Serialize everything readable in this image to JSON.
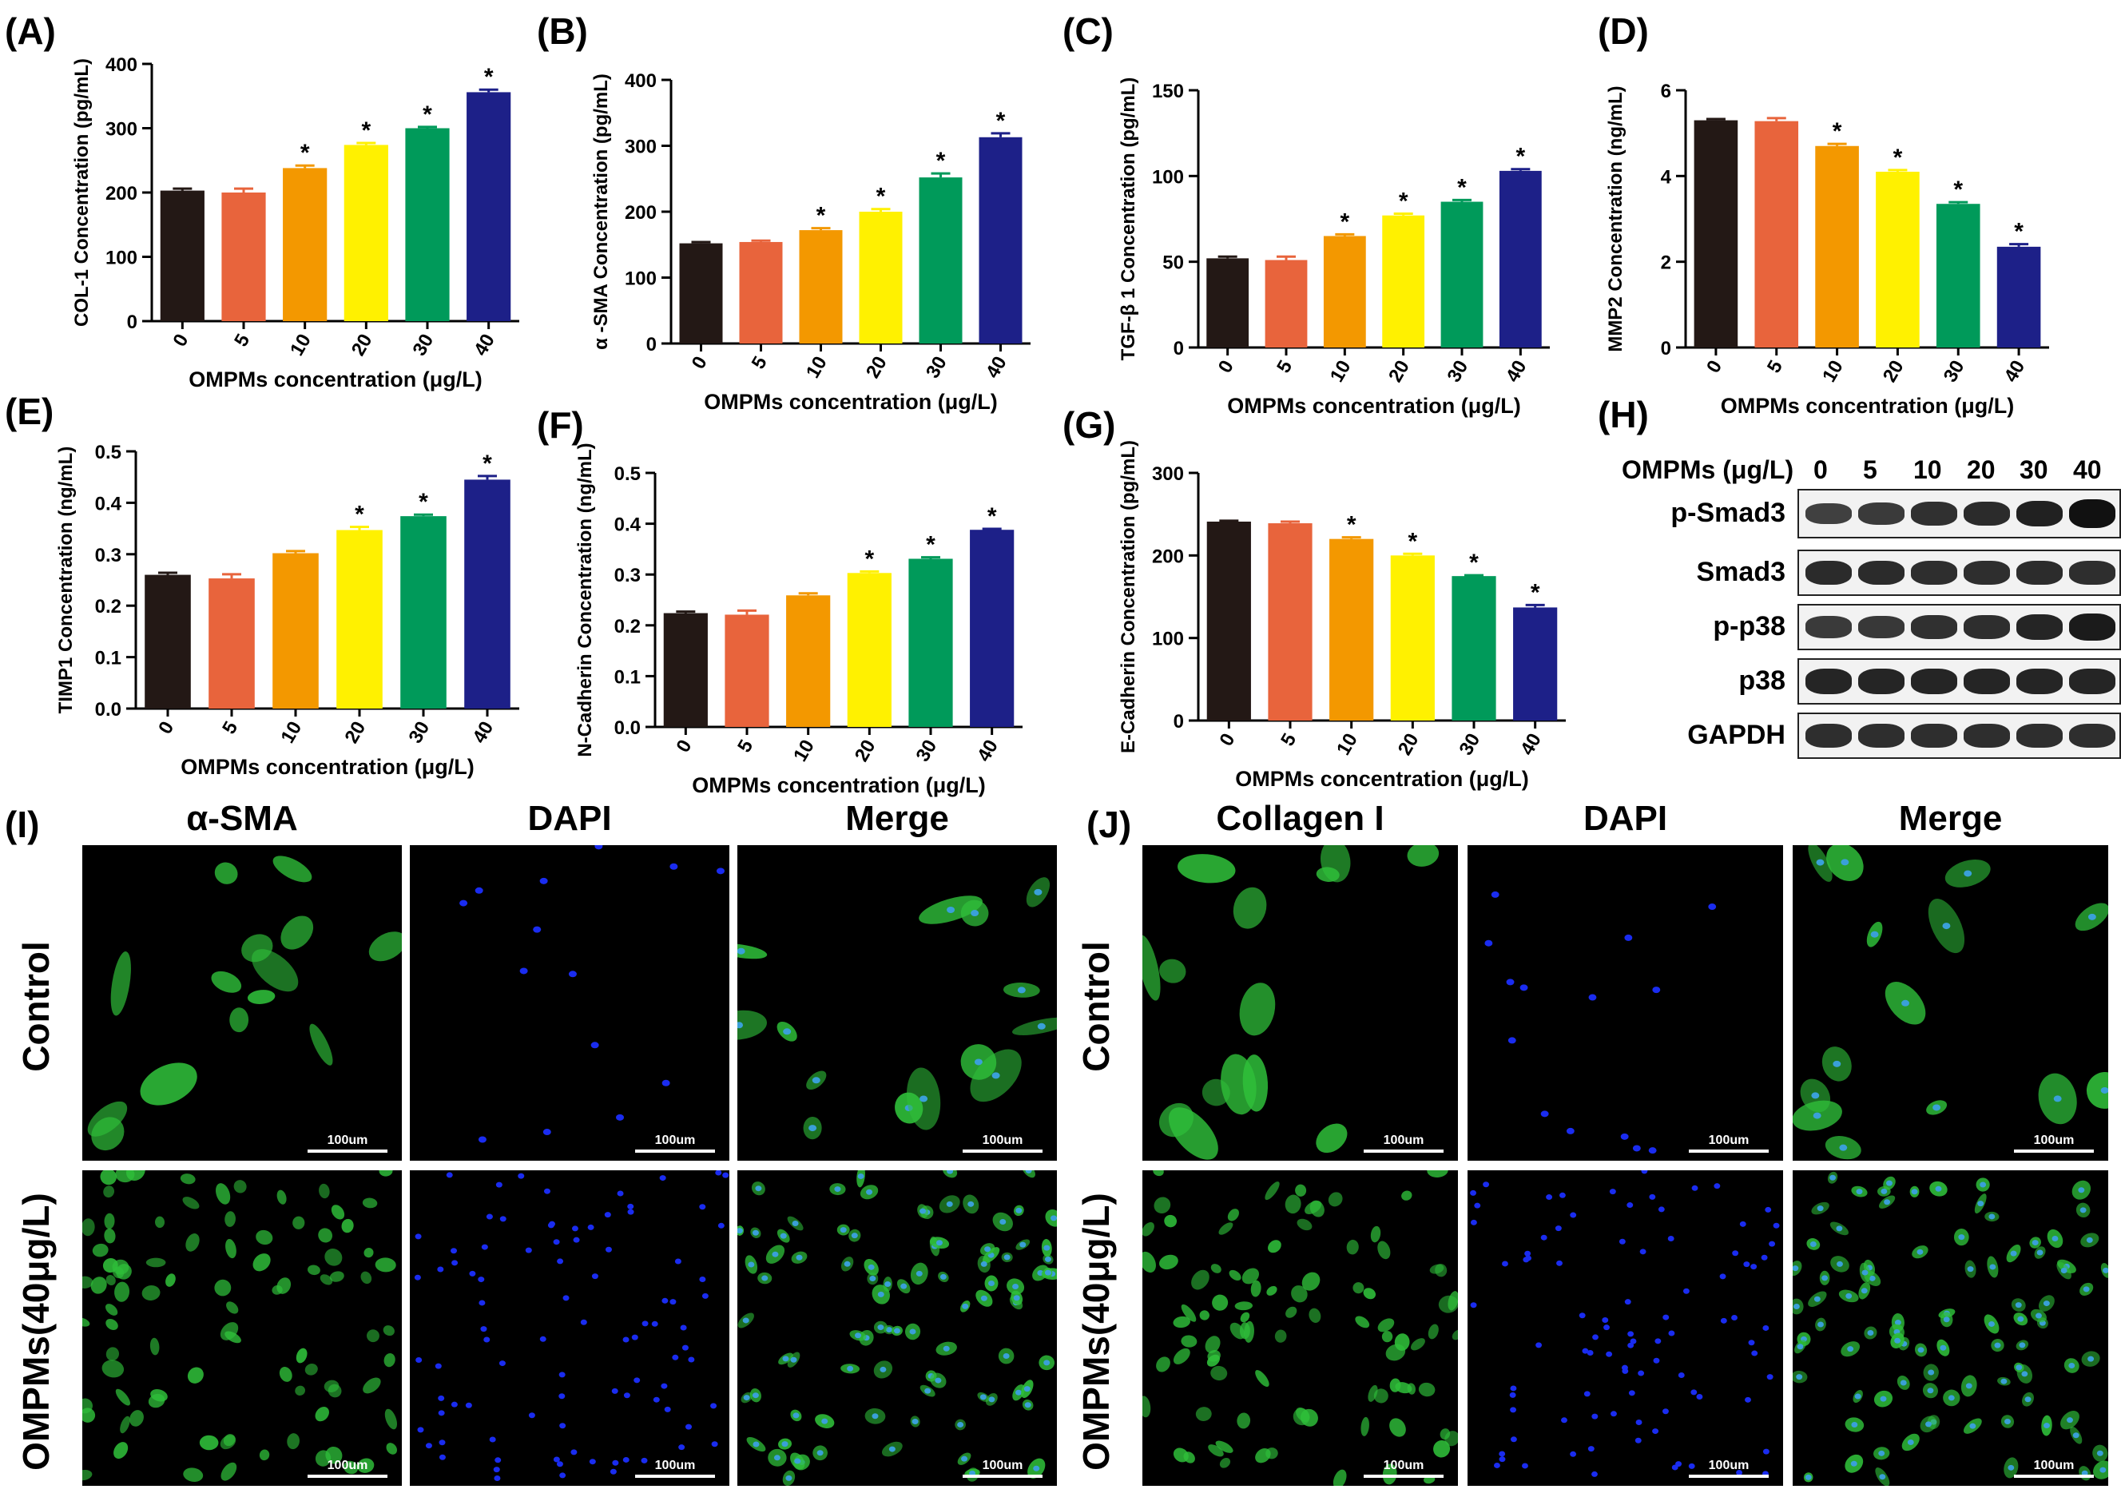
{
  "panel_letters": {
    "A": "(A)",
    "B": "(B)",
    "C": "(C)",
    "D": "(D)",
    "E": "(E)",
    "F": "(F)",
    "G": "(G)",
    "H": "(H)",
    "I": "(I)",
    "J": "(J)"
  },
  "colors": [
    "#231815",
    "#e8643c",
    "#f39800",
    "#fff100",
    "#009a5a",
    "#1d2088"
  ],
  "chart_data": [
    {
      "id": "A",
      "type": "bar",
      "categories": [
        "0",
        "5",
        "10",
        "20",
        "30",
        "40"
      ],
      "values": [
        203,
        200,
        238,
        274,
        300,
        356
      ],
      "errors": [
        3,
        6,
        4,
        3,
        2,
        4
      ],
      "significant": [
        false,
        false,
        true,
        true,
        true,
        true
      ],
      "ylabel": "COL-1 Concentration (pg/mL)",
      "xlabel": "OMPMs concentration (μg/L)",
      "ylim": [
        0,
        400
      ],
      "yticks": [
        0,
        100,
        200,
        300,
        400
      ]
    },
    {
      "id": "B",
      "type": "bar",
      "categories": [
        "0",
        "5",
        "10",
        "20",
        "30",
        "40"
      ],
      "values": [
        152,
        154,
        172,
        200,
        252,
        313
      ],
      "errors": [
        2,
        2,
        3,
        4,
        6,
        6
      ],
      "significant": [
        false,
        false,
        true,
        true,
        true,
        true
      ],
      "ylabel": "α -SMA Concentration (pg/mL)",
      "xlabel": "OMPMs concentration (μg/L)",
      "ylim": [
        0,
        400
      ],
      "yticks": [
        0,
        100,
        200,
        300,
        400
      ]
    },
    {
      "id": "C",
      "type": "bar",
      "categories": [
        "0",
        "5",
        "10",
        "20",
        "30",
        "40"
      ],
      "values": [
        52,
        51,
        65,
        77,
        85,
        103
      ],
      "errors": [
        1,
        2,
        1,
        1,
        1,
        1
      ],
      "significant": [
        false,
        false,
        true,
        true,
        true,
        true
      ],
      "ylabel": "TGF-β 1 Concentration (pg/mL)",
      "xlabel": "OMPMs concentration (μg/L)",
      "ylim": [
        0,
        150
      ],
      "yticks": [
        0,
        50,
        100,
        150
      ]
    },
    {
      "id": "D",
      "type": "bar",
      "categories": [
        "0",
        "5",
        "10",
        "20",
        "30",
        "40"
      ],
      "values": [
        5.3,
        5.28,
        4.7,
        4.1,
        3.35,
        2.35
      ],
      "errors": [
        0.03,
        0.07,
        0.05,
        0.04,
        0.04,
        0.06
      ],
      "significant": [
        false,
        false,
        true,
        true,
        true,
        true
      ],
      "ylabel": "MMP2 Concentration (ng/mL)",
      "xlabel": "OMPMs concentration (μg/L)",
      "ylim": [
        0,
        6
      ],
      "yticks": [
        0,
        2,
        4,
        6
      ]
    },
    {
      "id": "E",
      "type": "bar",
      "categories": [
        "0",
        "5",
        "10",
        "20",
        "30",
        "40"
      ],
      "values": [
        0.26,
        0.253,
        0.302,
        0.347,
        0.374,
        0.445
      ],
      "errors": [
        0.004,
        0.008,
        0.004,
        0.006,
        0.003,
        0.007
      ],
      "significant": [
        false,
        false,
        false,
        true,
        true,
        true
      ],
      "ylabel": "TIMP1 Concentration (ng/mL)",
      "xlabel": "OMPMs concentration (μg/L)",
      "ylim": [
        0,
        0.5
      ],
      "yticks": [
        0,
        0.1,
        0.2,
        0.3,
        0.4,
        0.5
      ],
      "decimals": 1
    },
    {
      "id": "F",
      "type": "bar",
      "categories": [
        "0",
        "5",
        "10",
        "20",
        "30",
        "40"
      ],
      "values": [
        0.224,
        0.221,
        0.259,
        0.303,
        0.331,
        0.388
      ],
      "errors": [
        0.003,
        0.008,
        0.004,
        0.003,
        0.003,
        0.002
      ],
      "significant": [
        false,
        false,
        false,
        true,
        true,
        true
      ],
      "ylabel": "N-Cadherin Concentration (ng/mL)",
      "xlabel": "OMPMs concentration (μg/L)",
      "ylim": [
        0,
        0.5
      ],
      "yticks": [
        0,
        0.1,
        0.2,
        0.3,
        0.4,
        0.5
      ],
      "decimals": 1
    },
    {
      "id": "G",
      "type": "bar",
      "categories": [
        "0",
        "5",
        "10",
        "20",
        "30",
        "40"
      ],
      "values": [
        241,
        239,
        220,
        200,
        175,
        137
      ],
      "errors": [
        1,
        2,
        2,
        2,
        1,
        3
      ],
      "significant": [
        false,
        false,
        true,
        true,
        true,
        true
      ],
      "ylabel": "E-Cadherin Concentration (pg/mL)",
      "xlabel": "OMPMs concentration (μg/L)",
      "ylim": [
        0,
        300
      ],
      "yticks": [
        0,
        100,
        200,
        300
      ]
    }
  ],
  "western_blot": {
    "header_label": "OMPMs (μg/L)",
    "lanes": [
      "0",
      "5",
      "10",
      "20",
      "30",
      "40"
    ],
    "rows": [
      {
        "label": "p-Smad3",
        "intensity": [
          0.55,
          0.6,
          0.7,
          0.75,
          0.85,
          1.0
        ]
      },
      {
        "label": "Smad3",
        "intensity": [
          0.75,
          0.75,
          0.72,
          0.72,
          0.74,
          0.72
        ]
      },
      {
        "label": "p-p38",
        "intensity": [
          0.6,
          0.62,
          0.7,
          0.72,
          0.8,
          0.9
        ]
      },
      {
        "label": "p38",
        "intensity": [
          0.8,
          0.8,
          0.8,
          0.8,
          0.8,
          0.8
        ]
      },
      {
        "label": "GAPDH",
        "intensity": [
          0.72,
          0.72,
          0.72,
          0.72,
          0.72,
          0.72
        ]
      }
    ]
  },
  "microscopy": {
    "I": {
      "headers": [
        "α-SMA",
        "DAPI",
        "Merge"
      ],
      "rows": [
        "Control",
        "OMPMs(40μg/L)"
      ]
    },
    "J": {
      "headers": [
        "Collagen I",
        "DAPI",
        "Merge"
      ],
      "rows": [
        "Control",
        "OMPMs(40μg/L)"
      ]
    },
    "scale_label": "100um"
  }
}
